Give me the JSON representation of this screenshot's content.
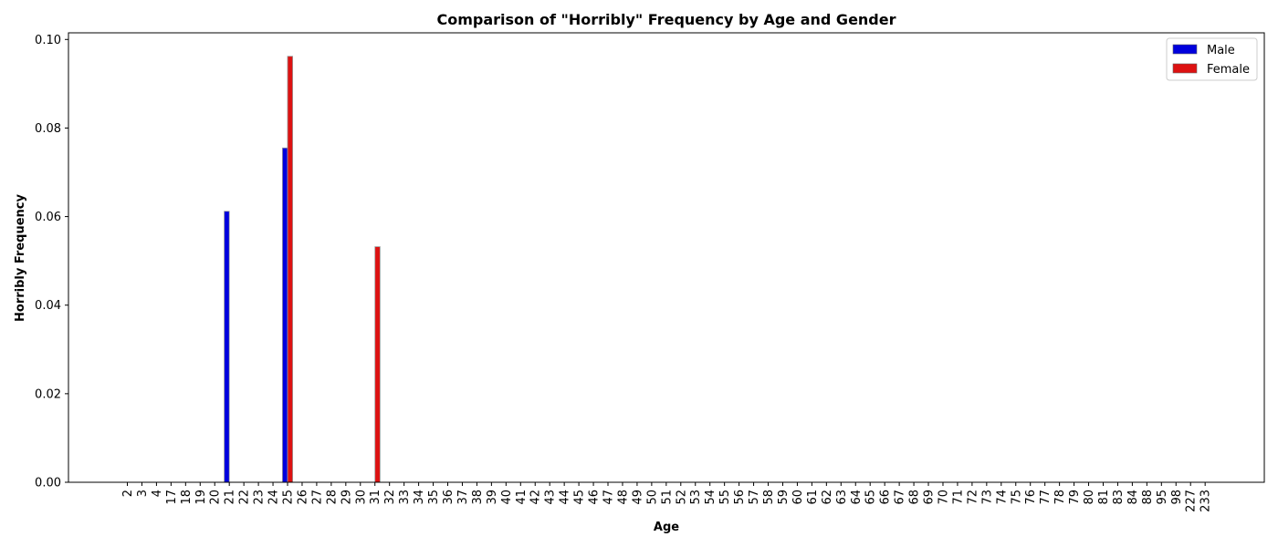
{
  "chart_data": {
    "type": "bar",
    "title": "Comparison of \"Horribly\" Frequency by Age and Gender",
    "xlabel": "Age",
    "ylabel": "Horribly Frequency",
    "ylim": [
      0,
      0.1015
    ],
    "yticks": [
      "0.00",
      "0.02",
      "0.04",
      "0.06",
      "0.08",
      "0.10"
    ],
    "ytick_values": [
      0,
      0.02,
      0.04,
      0.06,
      0.08,
      0.1
    ],
    "categories": [
      "2",
      "3",
      "4",
      "17",
      "18",
      "19",
      "20",
      "21",
      "22",
      "23",
      "24",
      "25",
      "26",
      "27",
      "28",
      "29",
      "30",
      "31",
      "32",
      "33",
      "34",
      "35",
      "36",
      "37",
      "38",
      "39",
      "40",
      "41",
      "42",
      "43",
      "44",
      "45",
      "46",
      "47",
      "48",
      "49",
      "50",
      "51",
      "52",
      "53",
      "54",
      "55",
      "56",
      "57",
      "58",
      "59",
      "60",
      "61",
      "62",
      "63",
      "64",
      "65",
      "66",
      "67",
      "68",
      "69",
      "70",
      "71",
      "72",
      "73",
      "74",
      "75",
      "76",
      "77",
      "78",
      "79",
      "80",
      "81",
      "83",
      "84",
      "88",
      "95",
      "98",
      "227",
      "233"
    ],
    "series": [
      {
        "name": "Male",
        "color": "#0000dd",
        "values": [
          0,
          0,
          0,
          0,
          0,
          0,
          0,
          0.0612,
          0,
          0,
          0,
          0.0755,
          0,
          0,
          0,
          0,
          0,
          0,
          0,
          0,
          0,
          0,
          0,
          0,
          0,
          0,
          0,
          0,
          0,
          0,
          0,
          0,
          0,
          0,
          0,
          0,
          0,
          0,
          0,
          0,
          0,
          0,
          0,
          0,
          0,
          0,
          0,
          0,
          0,
          0,
          0,
          0,
          0,
          0,
          0,
          0,
          0,
          0,
          0,
          0,
          0,
          0,
          0,
          0,
          0,
          0,
          0,
          0,
          0,
          0,
          0,
          0,
          0,
          0,
          0
        ]
      },
      {
        "name": "Female",
        "color": "#dd1111",
        "values": [
          0,
          0,
          0,
          0,
          0,
          0,
          0,
          0,
          0,
          0,
          0,
          0.0962,
          0,
          0,
          0,
          0,
          0,
          0.0532,
          0,
          0,
          0,
          0,
          0,
          0,
          0,
          0,
          0,
          0,
          0,
          0,
          0,
          0,
          0,
          0,
          0,
          0,
          0,
          0,
          0,
          0,
          0,
          0,
          0,
          0,
          0,
          0,
          0,
          0,
          0,
          0,
          0,
          0,
          0,
          0,
          0,
          0,
          0,
          0,
          0,
          0,
          0,
          0,
          0,
          0,
          0,
          0,
          0,
          0,
          0,
          0,
          0,
          0,
          0,
          0,
          0
        ]
      }
    ],
    "legend_position": "top-right",
    "grid": false
  }
}
